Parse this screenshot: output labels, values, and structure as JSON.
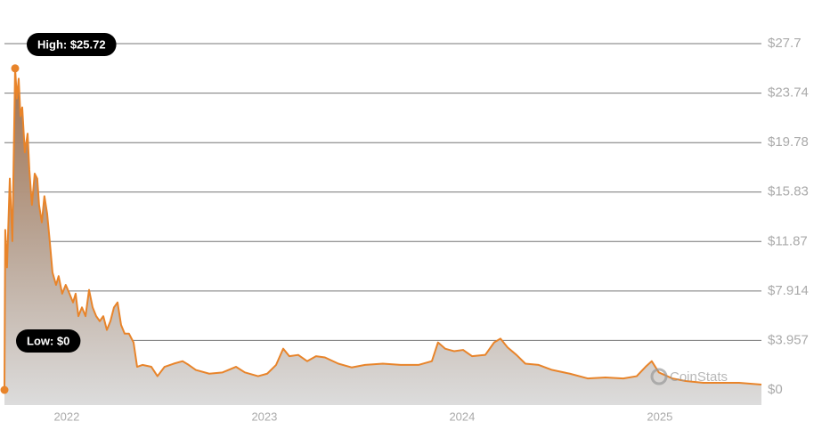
{
  "chart_data": {
    "type": "area",
    "x": [
      2021.685,
      2021.689,
      2021.698,
      2021.712,
      2021.725,
      2021.739,
      2021.748,
      2021.757,
      2021.766,
      2021.775,
      2021.788,
      2021.802,
      2021.811,
      2021.824,
      2021.838,
      2021.851,
      2021.86,
      2021.874,
      2021.887,
      2021.901,
      2021.914,
      2021.928,
      2021.946,
      2021.959,
      2021.977,
      2021.995,
      2022.014,
      2022.032,
      2022.045,
      2022.059,
      2022.077,
      2022.095,
      2022.113,
      2022.131,
      2022.149,
      2022.167,
      2022.185,
      2022.203,
      2022.221,
      2022.239,
      2022.257,
      2022.275,
      2022.293,
      2022.315,
      2022.338,
      2022.356,
      2022.383,
      2022.428,
      2022.459,
      2022.495,
      2022.541,
      2022.586,
      2022.617,
      2022.653,
      2022.721,
      2022.788,
      2022.856,
      2022.901,
      2022.968,
      2023.014,
      2023.059,
      2023.095,
      2023.126,
      2023.171,
      2023.216,
      2023.261,
      2023.306,
      2023.374,
      2023.441,
      2023.509,
      2023.599,
      2023.689,
      2023.779,
      2023.847,
      2023.878,
      2023.914,
      2023.959,
      2024.005,
      2024.05,
      2024.117,
      2024.162,
      2024.194,
      2024.23,
      2024.275,
      2024.32,
      2024.387,
      2024.455,
      2024.545,
      2024.635,
      2024.725,
      2024.815,
      2024.883,
      2024.928,
      2024.959,
      2024.995,
      2025.063,
      2025.131,
      2025.221,
      2025.311,
      2025.401,
      2025.514
    ],
    "series": [
      {
        "color": "#e8842a",
        "values": [
          0,
          12.8,
          9.8,
          16.9,
          11.9,
          25.72,
          23.3,
          24.9,
          21.9,
          22.6,
          19.0,
          20.5,
          17.6,
          14.8,
          17.3,
          16.9,
          14.8,
          13.4,
          15.5,
          14.1,
          11.9,
          9.4,
          8.4,
          9.1,
          7.7,
          8.4,
          7.7,
          7.0,
          7.7,
          5.9,
          6.6,
          5.9,
          8.0,
          6.6,
          5.9,
          5.5,
          5.9,
          4.8,
          5.5,
          6.6,
          7.0,
          5.2,
          4.5,
          4.5,
          3.8,
          1.85,
          2.0,
          1.85,
          1.1,
          1.85,
          2.1,
          2.3,
          2.0,
          1.6,
          1.3,
          1.4,
          1.85,
          1.4,
          1.1,
          1.3,
          2.0,
          3.3,
          2.7,
          2.8,
          2.3,
          2.7,
          2.6,
          2.1,
          1.8,
          2.0,
          2.1,
          2.0,
          2.0,
          2.3,
          3.8,
          3.3,
          3.1,
          3.2,
          2.7,
          2.8,
          3.8,
          4.1,
          3.4,
          2.8,
          2.1,
          2.0,
          1.6,
          1.3,
          0.92,
          1.0,
          0.92,
          1.1,
          1.85,
          2.3,
          1.4,
          0.92,
          0.71,
          0.57,
          0.57,
          0.57,
          0.43
        ]
      }
    ],
    "xlim": [
      2021.685,
      2025.514
    ],
    "xticks": [
      2022,
      2023,
      2024,
      2025
    ],
    "ylim": [
      0,
      27.7
    ],
    "yticks": [
      {
        "value": 27.7,
        "label": "$27.7"
      },
      {
        "value": 23.74,
        "label": "$23.74"
      },
      {
        "value": 19.78,
        "label": "$19.78"
      },
      {
        "value": 15.83,
        "label": "$15.83"
      },
      {
        "value": 11.87,
        "label": "$11.87"
      },
      {
        "value": 7.914,
        "label": "$7.914"
      },
      {
        "value": 3.957,
        "label": "$3.957"
      },
      {
        "value": 0,
        "label": "$0"
      }
    ],
    "grid": true,
    "high_label": "High: $25.72",
    "low_label": "Low: $0",
    "watermark": "CoinStats"
  }
}
